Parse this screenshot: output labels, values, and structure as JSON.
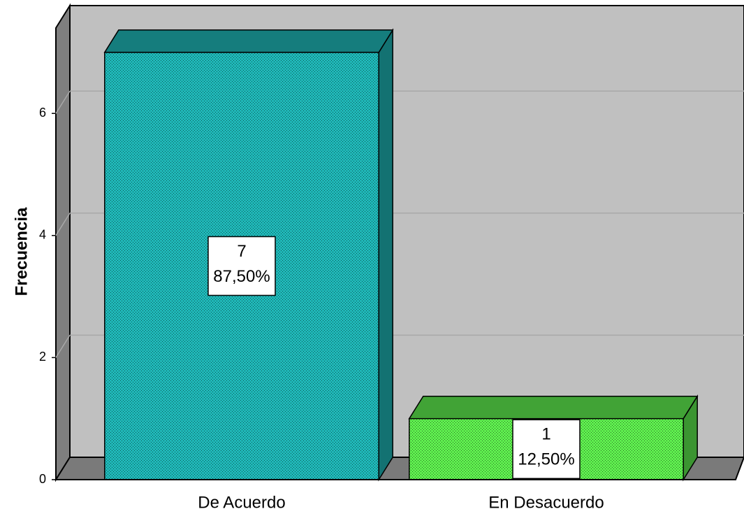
{
  "chart_data": {
    "type": "bar3d",
    "categories": [
      "De Acuerdo",
      "En Desacuerdo"
    ],
    "values": [
      7,
      1
    ],
    "percent_labels": [
      "87,50%",
      "12,50%"
    ],
    "colors": [
      "#1fb8b8",
      "#5ff04f"
    ],
    "ylabel": "Frecuencia",
    "ylim": [
      0,
      7.4
    ],
    "yticks": [
      0,
      2,
      4,
      6
    ],
    "grid": true
  }
}
